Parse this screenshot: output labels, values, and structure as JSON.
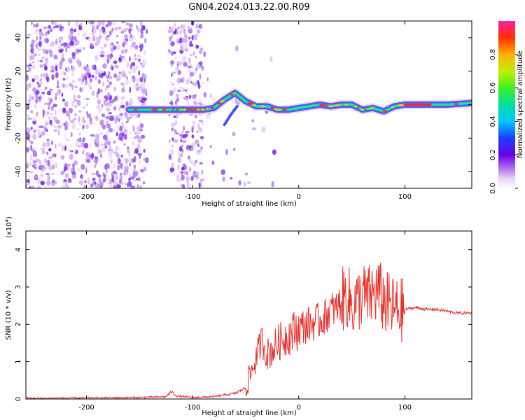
{
  "title": "GN04.2024.013.22.00.R09",
  "chart_data": [
    {
      "type": "heatmap",
      "xlabel": "Height of straight line (km)",
      "ylabel": "Frequency (Hz)",
      "xlim": [
        -257,
        163
      ],
      "ylim": [
        -50,
        50
      ],
      "xticks": [
        "-200",
        "-100",
        "0",
        "100"
      ],
      "xtick_values": [
        -200,
        -100,
        0,
        100
      ],
      "yticks": [
        "-40",
        "-20",
        "0",
        "20",
        "40"
      ],
      "ytick_values": [
        -40,
        -20,
        0,
        20,
        40
      ],
      "ridge": {
        "x": [
          -160,
          -140,
          -120,
          -100,
          -90,
          -80,
          -70,
          -60,
          -50,
          -40,
          -30,
          -20,
          -10,
          0,
          10,
          20,
          30,
          40,
          50,
          60,
          70,
          80,
          90,
          100,
          120,
          140,
          163
        ],
        "y": [
          -3,
          -3,
          -3,
          -3,
          -3,
          -2,
          3,
          7,
          2,
          -1,
          -1,
          -3,
          -3,
          -2,
          -1,
          0,
          -1,
          0,
          0,
          -3,
          -2,
          -4,
          -1,
          0,
          0,
          0,
          1
        ]
      },
      "colorbar": {
        "label": "Normalized spectral amplitude",
        "range": [
          0.0,
          1.0
        ],
        "ticks": [
          "0.0",
          "0.2",
          "0.4",
          "0.6",
          "0.8"
        ],
        "tick_values": [
          0.0,
          0.2,
          0.4,
          0.6,
          0.8
        ]
      }
    },
    {
      "type": "line",
      "xlabel": "Height of straight line (km)",
      "ylabel": "SNR (10 * v/v)",
      "yscale_note": "(x10",
      "yscale_exp": "4",
      "xlim": [
        -257,
        163
      ],
      "ylim": [
        0,
        4.5
      ],
      "xticks": [
        "-200",
        "-100",
        "0",
        "100"
      ],
      "xtick_values": [
        -200,
        -100,
        0,
        100
      ],
      "yticks": [
        "0",
        "1",
        "2",
        "3",
        "4"
      ],
      "ytick_values": [
        0,
        1,
        2,
        3,
        4
      ],
      "color": "#e8302c",
      "series": [
        {
          "x": [
            -257,
            -200,
            -150,
            -125,
            -120,
            -115,
            -100,
            -80,
            -60,
            -50,
            -45,
            -40,
            -35,
            -30,
            -25,
            -20,
            -15,
            -10,
            -5,
            0,
            10,
            20,
            25,
            30,
            35,
            40,
            45,
            50,
            55,
            60,
            65,
            70,
            75,
            80,
            85,
            90,
            95,
            100,
            110,
            120,
            130,
            140,
            150,
            163
          ],
          "y": [
            0.02,
            0.03,
            0.04,
            0.06,
            0.2,
            0.08,
            0.04,
            0.06,
            0.15,
            0.3,
            0.7,
            1.1,
            1.6,
            1.2,
            1.3,
            1.5,
            1.6,
            1.7,
            1.8,
            1.9,
            2.0,
            2.1,
            2.2,
            2.4,
            2.4,
            2.6,
            2.8,
            2.5,
            2.6,
            2.8,
            2.7,
            2.8,
            2.9,
            2.6,
            2.5,
            2.4,
            2.35,
            2.4,
            2.45,
            2.4,
            2.4,
            2.35,
            2.3,
            2.3
          ]
        }
      ]
    }
  ]
}
